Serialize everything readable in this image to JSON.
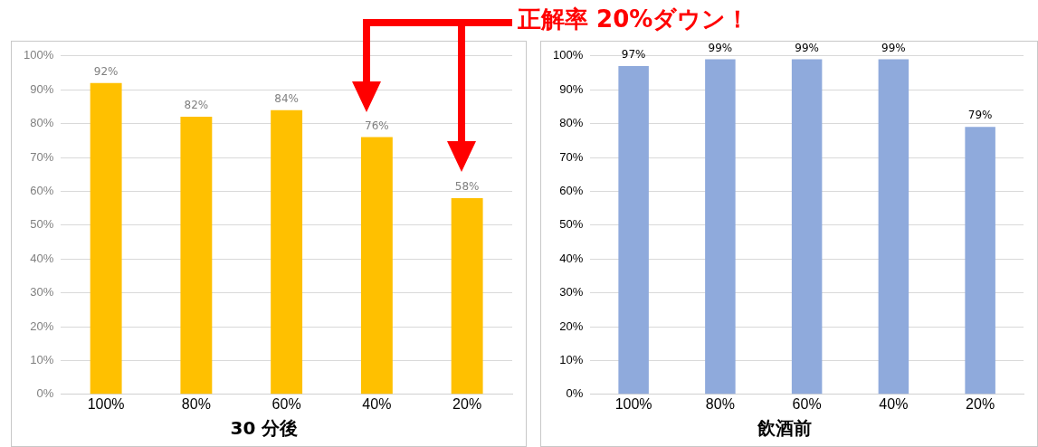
{
  "chart_data": [
    {
      "type": "bar",
      "title": "30 分後",
      "categories": [
        "100%",
        "80%",
        "60%",
        "40%",
        "20%"
      ],
      "values": [
        92,
        82,
        84,
        76,
        58
      ],
      "value_labels": [
        "92%",
        "82%",
        "84%",
        "76%",
        "58%"
      ],
      "color": "#ffc000",
      "ylim": [
        0,
        100
      ],
      "yticks": [
        {
          "value": 0,
          "label": "0%"
        },
        {
          "value": 10,
          "label": "10%"
        },
        {
          "value": 20,
          "label": "20%"
        },
        {
          "value": 30,
          "label": "30%"
        },
        {
          "value": 40,
          "label": "40%"
        },
        {
          "value": 50,
          "label": "50%"
        },
        {
          "value": 60,
          "label": "60%"
        },
        {
          "value": 70,
          "label": "70%"
        },
        {
          "value": 80,
          "label": "80%"
        },
        {
          "value": 90,
          "label": "90%"
        },
        {
          "value": 100,
          "label": "100%"
        }
      ],
      "grid": "y",
      "annotations": [
        "正解率 20%ダウン！"
      ]
    },
    {
      "type": "bar",
      "title": "飲酒前",
      "categories": [
        "100%",
        "80%",
        "60%",
        "40%",
        "20%"
      ],
      "values": [
        97,
        99,
        99,
        99,
        79
      ],
      "value_labels": [
        "97%",
        "99%",
        "99%",
        "99%",
        "79%"
      ],
      "color": "#8faadc",
      "ylim": [
        0,
        100
      ],
      "yticks": [
        {
          "value": 0,
          "label": "0%"
        },
        {
          "value": 10,
          "label": "10%"
        },
        {
          "value": 20,
          "label": "20%"
        },
        {
          "value": 30,
          "label": "30%"
        },
        {
          "value": 40,
          "label": "40%"
        },
        {
          "value": 50,
          "label": "50%"
        },
        {
          "value": 60,
          "label": "60%"
        },
        {
          "value": 70,
          "label": "70%"
        },
        {
          "value": 80,
          "label": "80%"
        },
        {
          "value": 90,
          "label": "90%"
        },
        {
          "value": 100,
          "label": "100%"
        }
      ],
      "grid": "y"
    }
  ]
}
